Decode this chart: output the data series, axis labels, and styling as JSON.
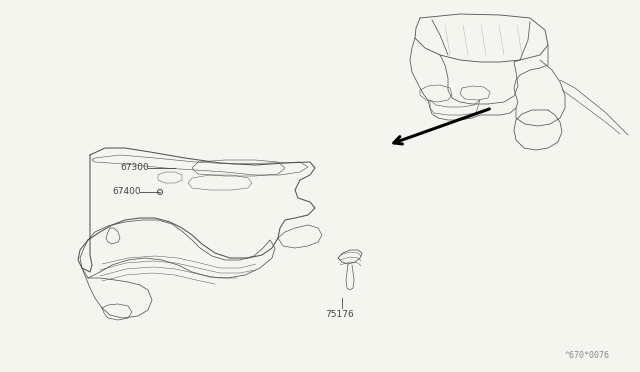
{
  "background_color": "#f5f5f0",
  "fig_width": 6.4,
  "fig_height": 3.72,
  "dpi": 100,
  "label_67300": "67300",
  "label_67400": "67400",
  "label_75176": "75176",
  "watermark": "^670*0076",
  "line_color": "#555555",
  "line_width": 0.7,
  "label_fontsize": 6.5,
  "watermark_fontsize": 6.0,
  "border_color": "#aaaaaa"
}
